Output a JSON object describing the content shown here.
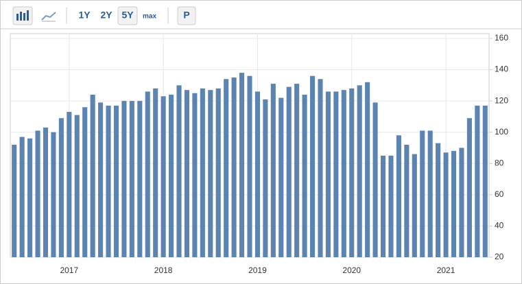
{
  "toolbar": {
    "ranges": [
      "1Y",
      "2Y",
      "5Y",
      "max"
    ],
    "active_range": "5Y",
    "print": "P"
  },
  "chart_data": {
    "type": "bar",
    "categories": [
      null,
      null,
      null,
      null,
      null,
      null,
      null,
      "2017",
      null,
      null,
      null,
      null,
      null,
      null,
      null,
      null,
      null,
      null,
      null,
      "2018",
      null,
      null,
      null,
      null,
      null,
      null,
      null,
      null,
      null,
      null,
      null,
      "2019",
      null,
      null,
      null,
      null,
      null,
      null,
      null,
      null,
      null,
      null,
      null,
      "2020",
      null,
      null,
      null,
      null,
      null,
      null,
      null,
      null,
      null,
      null,
      null,
      "2021",
      null,
      null,
      null,
      null,
      null
    ],
    "values": [
      92,
      97,
      96,
      101,
      103,
      100,
      109,
      113,
      111,
      116,
      124,
      119,
      117,
      117,
      120,
      120,
      120,
      126,
      128,
      123,
      124,
      130,
      127,
      125,
      128,
      127,
      128,
      134,
      135,
      138,
      136,
      126,
      121,
      131,
      122,
      129,
      131,
      124,
      136,
      134,
      126,
      126,
      127,
      128,
      130,
      132,
      119,
      85,
      85,
      98,
      92,
      86,
      101,
      101,
      93,
      87,
      88,
      90,
      109,
      117,
      117
    ],
    "color": "#5b84b1",
    "ylim": [
      20,
      160
    ],
    "yticks": [
      20,
      40,
      60,
      80,
      100,
      120,
      140,
      160
    ],
    "grid": true
  }
}
